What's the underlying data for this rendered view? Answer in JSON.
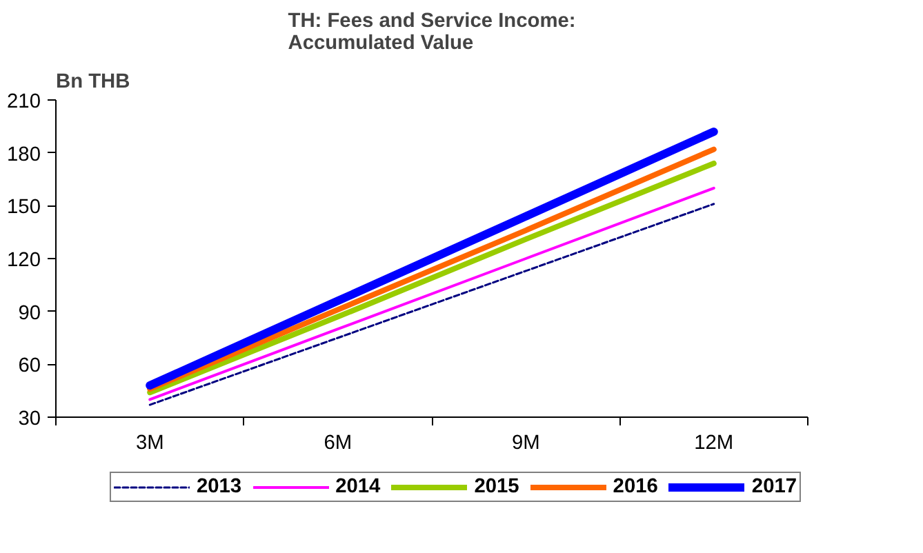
{
  "chart_data": {
    "type": "line",
    "title": "TH: Fees and Service Income: Accumulated Value",
    "ylabel": "Bn THB",
    "categories": [
      "3M",
      "6M",
      "9M",
      "12M"
    ],
    "series": [
      {
        "name": "2013",
        "color": "#000080",
        "line_style": "dashed",
        "values": [
          37,
          75,
          113,
          151
        ]
      },
      {
        "name": "2014",
        "color": "#ff00ff",
        "values": [
          40,
          80,
          120,
          160
        ]
      },
      {
        "name": "2015",
        "color": "#99cc00",
        "values": [
          44,
          87,
          131,
          174
        ]
      },
      {
        "name": "2016",
        "color": "#ff6600",
        "values": [
          46,
          91,
          136,
          182
        ]
      },
      {
        "name": "2017",
        "color": "#0000ff",
        "values": [
          48,
          96,
          144,
          192
        ]
      }
    ],
    "ylim": [
      30,
      210
    ],
    "yticks": [
      30,
      60,
      90,
      120,
      150,
      180,
      210
    ],
    "grid": false,
    "legend": "bottom",
    "marker": "none",
    "line_style": "solid"
  }
}
